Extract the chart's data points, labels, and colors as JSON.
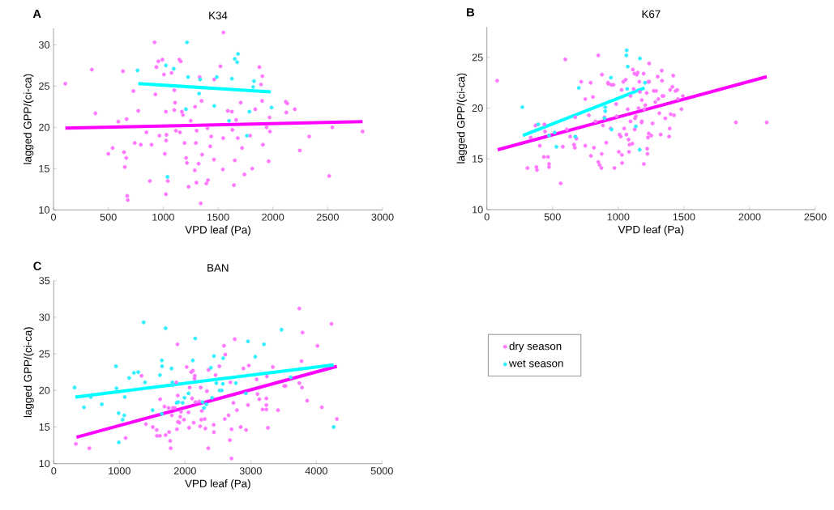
{
  "chart_data": [
    {
      "type": "scatter",
      "title": "K34",
      "xlabel": "VPD leaf (Pa)",
      "ylabel": "lagged GPP/(ci-ca)",
      "annotations": [
        "A"
      ],
      "marker": "circle",
      "xlim": [
        0,
        3000
      ],
      "ylim": [
        10,
        32
      ],
      "xticks": [
        0,
        500,
        1000,
        1500,
        2000,
        2500,
        3000
      ],
      "yticks": [
        10,
        15,
        20,
        25,
        30
      ],
      "series": [
        {
          "color": "#ff77ff",
          "x": [
            108,
            350,
            382,
            633,
            729,
            773,
            591,
            667,
            539,
            500,
            643,
            663,
            650,
            672,
            677,
            741,
            796,
            847,
            879,
            894,
            921,
            929,
            938,
            956,
            993,
            966,
            1007,
            1015,
            1025,
            1030,
            1027,
            1025,
            1042,
            1076,
            1101,
            1108,
            1101,
            1116,
            1148,
            1160,
            1153,
            1170,
            1180,
            1195,
            1209,
            1217,
            1232,
            1251,
            1291,
            1298,
            1305,
            1323,
            1288,
            1303,
            1332,
            1350,
            1355,
            1342,
            1394,
            1409,
            1404,
            1429,
            1438,
            1463,
            1465,
            1522,
            1544,
            1547,
            1549,
            1589,
            1626,
            1631,
            1645,
            1653,
            1665,
            1680,
            1707,
            1719,
            1741,
            1793,
            1811,
            1840,
            1877,
            1892,
            1904,
            1902,
            1909,
            1943,
            1961,
            1970,
            1973,
            2118,
            2123,
            2131,
            2200,
            2246,
            2542,
            2818,
            2331,
            2513
          ],
          "values": [
            25.3,
            27.0,
            21.7,
            26.8,
            24.4,
            22.0,
            20.7,
            21.0,
            17.5,
            16.8,
            17.0,
            16.3,
            15.2,
            11.7,
            11.2,
            18.1,
            17.9,
            19.4,
            13.5,
            17.9,
            30.3,
            24.0,
            27.3,
            28.0,
            28.2,
            19.0,
            26.4,
            16.8,
            21.9,
            19.1,
            18.4,
            11.9,
            13.5,
            26.6,
            24.5,
            23.0,
            22.1,
            19.6,
            28.2,
            28.0,
            19.4,
            21.9,
            21.5,
            18.1,
            16.3,
            15.7,
            12.8,
            20.8,
            22.5,
            18.1,
            19.6,
            15.6,
            14.8,
            13.3,
            26.1,
            23.2,
            16.7,
            10.8,
            13.2,
            13.6,
            19.9,
            17.7,
            18.9,
            16.1,
            25.8,
            27.4,
            14.9,
            18.7,
            31.5,
            22.0,
            21.9,
            19.7,
            13.0,
            16.0,
            20.9,
            18.7,
            23.0,
            17.5,
            14.3,
            19.0,
            15.0,
            22.2,
            27.3,
            25.2,
            26.2,
            23.2,
            17.9,
            20.0,
            15.9,
            21.2,
            19.5,
            23.1,
            21.8,
            22.9,
            22.2,
            17.2,
            20.0,
            19.5,
            18.9,
            14.1
          ]
        },
        {
          "color": "#33eeff",
          "x": [
            766,
            1025,
            1096,
            1217,
            1227,
            1328,
            1337,
            1328,
            1207,
            1466,
            1488,
            1601,
            1626,
            1653,
            1682,
            1675,
            1764,
            1786,
            1820,
            1828,
            1988,
            1039
          ],
          "values": [
            26.9,
            27.5,
            27.1,
            30.3,
            26.1,
            null,
            25.8,
            24.1,
            22.2,
            22.6,
            26.1,
            20.8,
            25.9,
            28.3,
            28.9,
            27.9,
            19.0,
            21.9,
            24.9,
            25.6,
            22.4,
            14.0
          ]
        },
        {
          "type": "line",
          "marker": "none",
          "color": "#ff00ff",
          "x": [
            108,
            2818
          ],
          "values": [
            19.9,
            20.7
          ]
        },
        {
          "type": "line",
          "marker": "none",
          "color": "#00ffff",
          "x": [
            773,
            1980
          ],
          "values": [
            25.3,
            24.3
          ]
        }
      ]
    },
    {
      "type": "scatter",
      "title": "K67",
      "xlabel": "VPD leaf (Pa)",
      "ylabel": "lagged GPP/(ci-ca)",
      "annotations": [
        "B"
      ],
      "marker": "circle",
      "xlim": [
        0,
        2500
      ],
      "ylim": [
        10,
        28
      ],
      "xticks": [
        0,
        500,
        1000,
        1500,
        2000,
        2500
      ],
      "yticks": [
        10,
        15,
        20,
        25
      ],
      "series": [
        {
          "color": "#ff77ff",
          "x": [
            78,
            309,
            333,
            370,
            377,
            381,
            403,
            434,
            438,
            442,
            465,
            473,
            473,
            562,
            578,
            597,
            609,
            634,
            663,
            669,
            681,
            673,
            718,
            749,
            749,
            776,
            790,
            792,
            807,
            815,
            827,
            848,
            848,
            858,
            872,
            874,
            876,
            883,
            895,
            909,
            922,
            924,
            942,
            946,
            963,
            971,
            984,
            988,
            1004,
            1010,
            1019,
            1025,
            1027,
            1029,
            1039,
            1045,
            1056,
            1062,
            1072,
            1078,
            1082,
            1086,
            1093,
            1093,
            1107,
            1111,
            1117,
            1123,
            1125,
            1128,
            1134,
            1140,
            1148,
            1154,
            1160,
            1165,
            1177,
            1179,
            1179,
            1193,
            1195,
            1198,
            1206,
            1216,
            1220,
            1222,
            1226,
            1228,
            1232,
            1235,
            1235,
            1251,
            1261,
            1270,
            1282,
            1288,
            1300,
            1305,
            1313,
            1323,
            1331,
            1333,
            1337,
            1344,
            1358,
            1387,
            1391,
            1395,
            1399,
            1412,
            1418,
            1424,
            1436,
            1449,
            1455,
            1481,
            1492,
            1895,
            2130
          ],
          "values": [
            22.7,
            14.1,
            17.1,
            18.3,
            14.2,
            13.9,
            16.3,
            15.2,
            18.4,
            17.7,
            15.2,
            14.5,
            14.2,
            12.6,
            16.2,
            24.8,
            17.9,
            17.2,
            16.4,
            16.1,
            17.0,
            19.1,
            22.6,
            20.9,
            16.3,
            19.3,
            22.5,
            15.3,
            21.1,
            16.1,
            18.7,
            25.2,
            14.7,
            14.4,
            14.1,
            15.5,
            23.3,
            18.3,
            19.1,
            16.6,
            22.5,
            22.4,
            18.0,
            22.3,
            22.3,
            14.1,
            20.4,
            19.2,
            15.7,
            17.4,
            17.2,
            21.8,
            15.4,
            14.6,
            22.6,
            18.0,
            22.8,
            17.4,
            19.9,
            16.9,
            15.7,
            16.4,
            18.7,
            21.2,
            16.5,
            23.8,
            21.9,
            23.4,
            17.9,
            19.0,
            19.2,
            23.3,
            23.5,
            20.0,
            22.6,
            21.6,
            18.6,
            20.8,
            18.7,
            23.4,
            14.5,
            19.9,
            20.3,
            21.5,
            16.0,
            15.5,
            17.1,
            22.6,
            17.5,
            24.4,
            22.6,
            17.3,
            18.5,
            21.7,
            20.6,
            21.7,
            23.1,
            20.9,
            19.5,
            17.4,
            23.7,
            22.7,
            21.2,
            21.2,
            19.0,
            17.2,
            18.0,
            21.8,
            19.4,
            22.1,
            23.2,
            19.3,
            21.7,
            21.8,
            20.9,
            19.9,
            21.2,
            18.6,
            18.6
          ]
        },
        {
          "color": "#33eeff",
          "x": [
            270,
            391,
            473,
            516,
            529,
            673,
            700,
            901,
            901,
            895,
            944,
            949,
            1064,
            1062,
            1072,
            1068,
            1134,
            1165,
            1163,
            1204
          ],
          "values": [
            20.1,
            18.4,
            17.3,
            17.6,
            16.2,
            17.2,
            22.0,
            20.1,
            19.7,
            19.0,
            23.0,
            17.9,
            25.7,
            25.2,
            24.1,
            21.9,
            18.2,
            24.9,
            15.9,
            22.5
          ]
        },
        {
          "type": "line",
          "marker": "none",
          "color": "#ff00ff",
          "x": [
            82,
            2130
          ],
          "values": [
            15.9,
            23.1
          ]
        },
        {
          "type": "line",
          "marker": "none",
          "color": "#00ffff",
          "x": [
            274,
            1200
          ],
          "values": [
            17.3,
            22.0
          ]
        }
      ]
    },
    {
      "type": "scatter",
      "title": "BAN",
      "xlabel": "VPD leaf (Pa)",
      "ylabel": "lagged GPP/(ci-ca)",
      "annotations": [
        "C"
      ],
      "marker": "circle",
      "legend": "right",
      "xlim": [
        0,
        5000
      ],
      "ylim": [
        10,
        35
      ],
      "xticks": [
        0,
        1000,
        2000,
        3000,
        4000,
        5000
      ],
      "yticks": [
        10,
        15,
        20,
        25,
        30,
        35
      ],
      "series": [
        {
          "name": "dry season",
          "color": "#ff77ff",
          "x": [
            337,
            543,
            1095,
            1337,
            1403,
            1510,
            1568,
            1572,
            1617,
            1621,
            1687,
            1704,
            1749,
            1757,
            1774,
            1782,
            1798,
            1815,
            1844,
            1868,
            1877,
            1885,
            1889,
            1893,
            1914,
            1926,
            1938,
            1984,
            2025,
            2053,
            2062,
            2070,
            2095,
            2107,
            2119,
            2132,
            2144,
            2148,
            2160,
            2218,
            2230,
            2239,
            2247,
            2255,
            2300,
            2309,
            2333,
            2354,
            2358,
            2436,
            2440,
            2465,
            2523,
            2593,
            2613,
            2605,
            2663,
            2683,
            2691,
            2708,
            2708,
            2737,
            2757,
            2790,
            2848,
            2889,
            2930,
            2959,
            2971,
            3091,
            3103,
            3132,
            3181,
            3239,
            3239,
            3239,
            3247,
            3263,
            3337,
            3416,
            3510,
            3531,
            3741,
            3741,
            4231,
            3790,
            4017,
            3774,
            3782,
            3861,
            4083,
            4313
          ],
          "values": [
            12.7,
            12.1,
            13.5,
            22.0,
            15.4,
            15.0,
            14.6,
            13.8,
            13.8,
            18.8,
            17.8,
            13.9,
            17.6,
            14.3,
            13.1,
            12.1,
            16.6,
            17.6,
            17.6,
            21.1,
            14.7,
            26.3,
            19.3,
            15.7,
            15.6,
            16.4,
            17.1,
            16.0,
            23.2,
            17.0,
            14.9,
            20.4,
            22.5,
            18.9,
            22.7,
            15.6,
            21.6,
            22.0,
            18.4,
            18.5,
            15.1,
            20.4,
            16.0,
            17.2,
            16.1,
            14.8,
            19.9,
            12.1,
            22.8,
            15.3,
            14.3,
            22.1,
            23.3,
            26.1,
            24.9,
            16.1,
            16.6,
            13.2,
            21.1,
            14.7,
            10.7,
            18.3,
            27.0,
            17.3,
            15.0,
            23.0,
            14.6,
            18.0,
            23.4,
            21.5,
            19.5,
            18.8,
            17.4,
            18.9,
            18.0,
            17.4,
            21.9,
            14.9,
            23.2,
            17.3,
            20.6,
            20.6,
            31.2,
            21.0,
            29.1,
            27.9,
            26.1,
            24.0,
            20.4,
            18.6,
            17.7,
            16.1
          ]
        },
        {
          "name": "wet season",
          "color": "#33eeff",
          "x": [
            317,
            461,
            564,
            733,
            947,
            955,
            988,
            992,
            1049,
            1074,
            1082,
            1148,
            1222,
            1288,
            1370,
            1391,
            1506,
            1617,
            1646,
            1650,
            1646,
            1704,
            1794,
            1807,
            1815,
            1872,
            1897,
            1963,
            1992,
            2053,
            2119,
            2156,
            2267,
            2288,
            2325,
            2395,
            2412,
            2440,
            2477,
            2527,
            2560,
            2576,
            2580,
            2774,
            2926,
            2959,
            3070,
            3202,
            3469,
            3609,
            4264
          ],
          "values": [
            20.4,
            17.7,
            19.1,
            18.1,
            23.3,
            20.3,
            16.9,
            12.9,
            16.0,
            16.6,
            19.1,
            21.7,
            22.4,
            22.5,
            29.3,
            21.1,
            17.3,
            22.1,
            24.1,
            23.3,
            16.8,
            28.5,
            23.0,
            21.1,
            20.7,
            18.3,
            18.4,
            18.3,
            19.0,
            19.6,
            24.1,
            27.1,
            18.4,
            17.6,
            18.1,
            23.1,
            19.0,
            24.7,
            21.0,
            20.0,
            20.0,
            20.9,
            24.4,
            21.0,
            19.6,
            26.7,
            24.6,
            26.3,
            28.3,
            21.8,
            15.0
          ]
        },
        {
          "type": "line",
          "marker": "none",
          "color": "#ff00ff",
          "x": [
            346,
            4313
          ],
          "values": [
            13.6,
            23.3
          ]
        },
        {
          "type": "line",
          "marker": "none",
          "color": "#00ffff",
          "x": [
            329,
            4264
          ],
          "values": [
            19.1,
            23.5
          ]
        }
      ]
    }
  ]
}
